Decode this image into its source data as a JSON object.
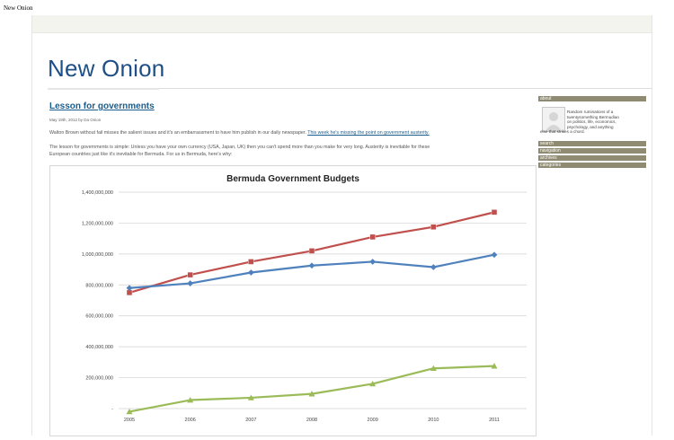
{
  "browser": {
    "tab_title": "New Onion"
  },
  "site": {
    "title": "New Onion"
  },
  "post": {
    "title": "Lesson for governments",
    "meta": "May 19th, 2012 by Da Onion",
    "para1_text": "Walton Brown without fail misses the salient issues and it's an embarrassment to have him publish in our daily newspaper.",
    "para1_link": "This week he's missing the point on government austerity.",
    "para2_line1": "The lesson for governments is simple: Unless you have your own currency (USA, Japan, UK) then you can't spend more than you make for very long. Austerity is inevitable for these",
    "para2_line2": "European countries just like it's inevitable for Bermuda. For us in Bermuda, here's why:"
  },
  "sidebar": {
    "about_heading": "about",
    "about_text_lines": [
      "Random ruminations of a",
      "twentysomething Bermudian",
      "on politics, life, economics,",
      "psychology, and anything",
      "else that strikes a chord."
    ],
    "search_heading": "search",
    "navigation_heading": "navigation",
    "archives_heading": "archives",
    "categories_heading": "categories"
  },
  "colors": {
    "series_red": "#c0504d",
    "series_blue": "#4f81bd",
    "series_green": "#9bbb59",
    "sidebar_heading_bg": "#8e8b72",
    "site_title": "#1e4f86",
    "link": "#1a5c8c"
  },
  "chart_data": {
    "type": "line",
    "title": "Bermuda Government Budgets",
    "xlabel": "",
    "ylabel": "",
    "x": [
      "2005",
      "2006",
      "2007",
      "2008",
      "2009",
      "2010",
      "2011"
    ],
    "ylim": [
      0,
      1400000000
    ],
    "yticks": [
      0,
      200000000,
      400000000,
      600000000,
      800000000,
      1000000000,
      1200000000,
      1400000000
    ],
    "ytick_labels": [
      "-",
      "200,000,000",
      "400,000,000",
      "600,000,000",
      "800,000,000",
      "1,000,000,000",
      "1,200,000,000",
      "1,400,000,000"
    ],
    "grid": true,
    "legend": "none",
    "series": [
      {
        "color": "#c0504d",
        "marker": "square",
        "values": [
          750000000,
          865000000,
          950000000,
          1020000000,
          1110000000,
          1175000000,
          1270000000
        ]
      },
      {
        "color": "#4f81bd",
        "marker": "diamond",
        "values": [
          780000000,
          810000000,
          880000000,
          925000000,
          950000000,
          915000000,
          995000000
        ]
      },
      {
        "color": "#9bbb59",
        "marker": "triangle",
        "values": [
          -20000000,
          55000000,
          70000000,
          95000000,
          160000000,
          260000000,
          275000000
        ]
      }
    ]
  }
}
